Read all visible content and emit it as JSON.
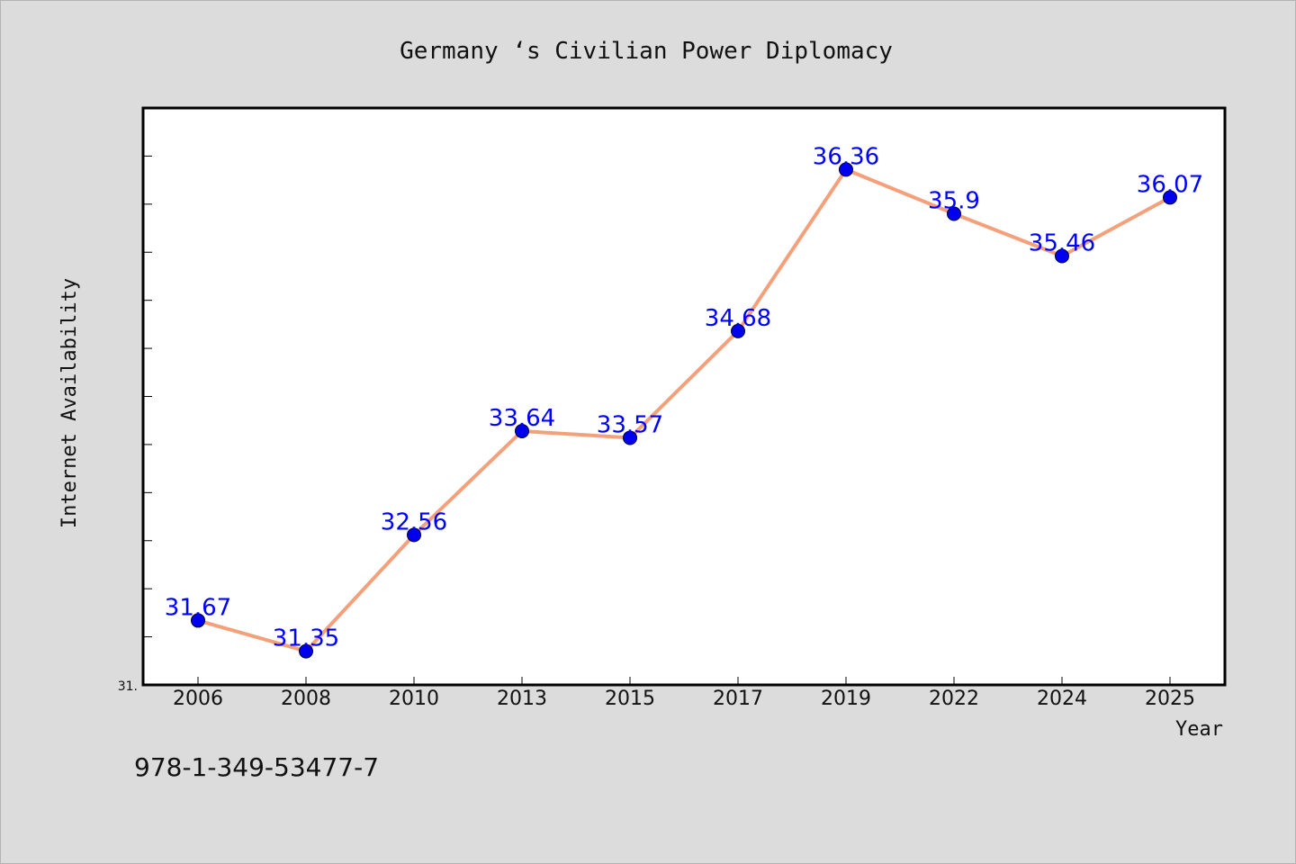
{
  "chart_data": {
    "type": "line",
    "title": "Germany ‘s Civilian Power Diplomacy",
    "xlabel": "Year",
    "ylabel": "Internet Availability",
    "categories": [
      "2006",
      "2008",
      "2010",
      "2013",
      "2015",
      "2017",
      "2019",
      "2022",
      "2024",
      "2025"
    ],
    "series": [
      {
        "values": [
          31.67,
          31.35,
          32.56,
          33.64,
          33.57,
          34.68,
          36.36,
          35.9,
          35.46,
          36.07
        ],
        "line_color": "#f4a07a",
        "marker_color": "#0000ee"
      }
    ],
    "data_labels": [
      "31.67",
      "31.35",
      "32.56",
      "33.64",
      "33.57",
      "34.68",
      "36.36",
      "35.9",
      "35.46",
      "36.07"
    ],
    "y_tick_label": "31.",
    "ylim": [
      31.0,
      37.0
    ],
    "grid": false,
    "legend": "none"
  },
  "footer": {
    "isbn": "978-1-349-53477-7"
  }
}
